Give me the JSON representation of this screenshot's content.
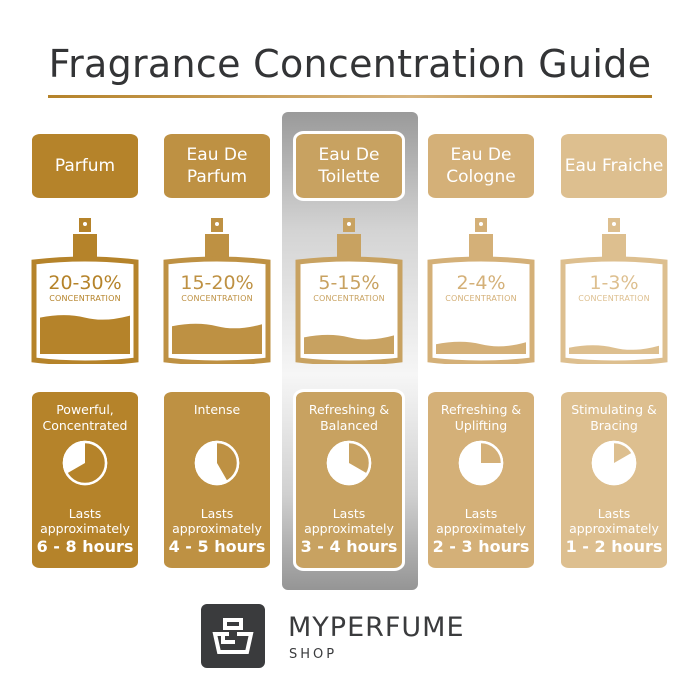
{
  "title": "Fragrance Concentration Guide",
  "concentration_label": "CONCENTRATION",
  "lasts_label": "Lasts approximately",
  "highlighted_column": "Eau De Toilette",
  "columns": [
    {
      "name": "Parfum",
      "concentration": "20-30%",
      "description": "Powerful, Concentrated",
      "duration": "6 - 8 hours",
      "clock_hours": 8,
      "fill_level": 0.4,
      "color": "#b5832a"
    },
    {
      "name": "Eau De Parfum",
      "concentration": "15-20%",
      "description": "Intense",
      "duration": "4 - 5 hours",
      "clock_hours": 5,
      "fill_level": 0.3,
      "color": "#be9143"
    },
    {
      "name": "Eau De Toilette",
      "concentration": "5-15%",
      "description": "Refreshing & Balanced",
      "duration": "3 - 4 hours",
      "clock_hours": 4,
      "fill_level": 0.17,
      "color": "#c8a261"
    },
    {
      "name": "Eau De Cologne",
      "concentration": "2-4%",
      "description": "Refreshing & Uplifting",
      "duration": "2 - 3 hours",
      "clock_hours": 3,
      "fill_level": 0.09,
      "color": "#d4b078"
    },
    {
      "name": "Eau Fraiche",
      "concentration": "1-3%",
      "description": "Stimulating & Bracing",
      "duration": "1 - 2 hours",
      "clock_hours": 2,
      "fill_level": 0.05,
      "color": "#ddbf8f"
    }
  ],
  "logo": {
    "brand": "MYPERFUME",
    "sub": "SHOP",
    "icon": "perfume-bottle-icon",
    "color": "#3a3b3d"
  }
}
